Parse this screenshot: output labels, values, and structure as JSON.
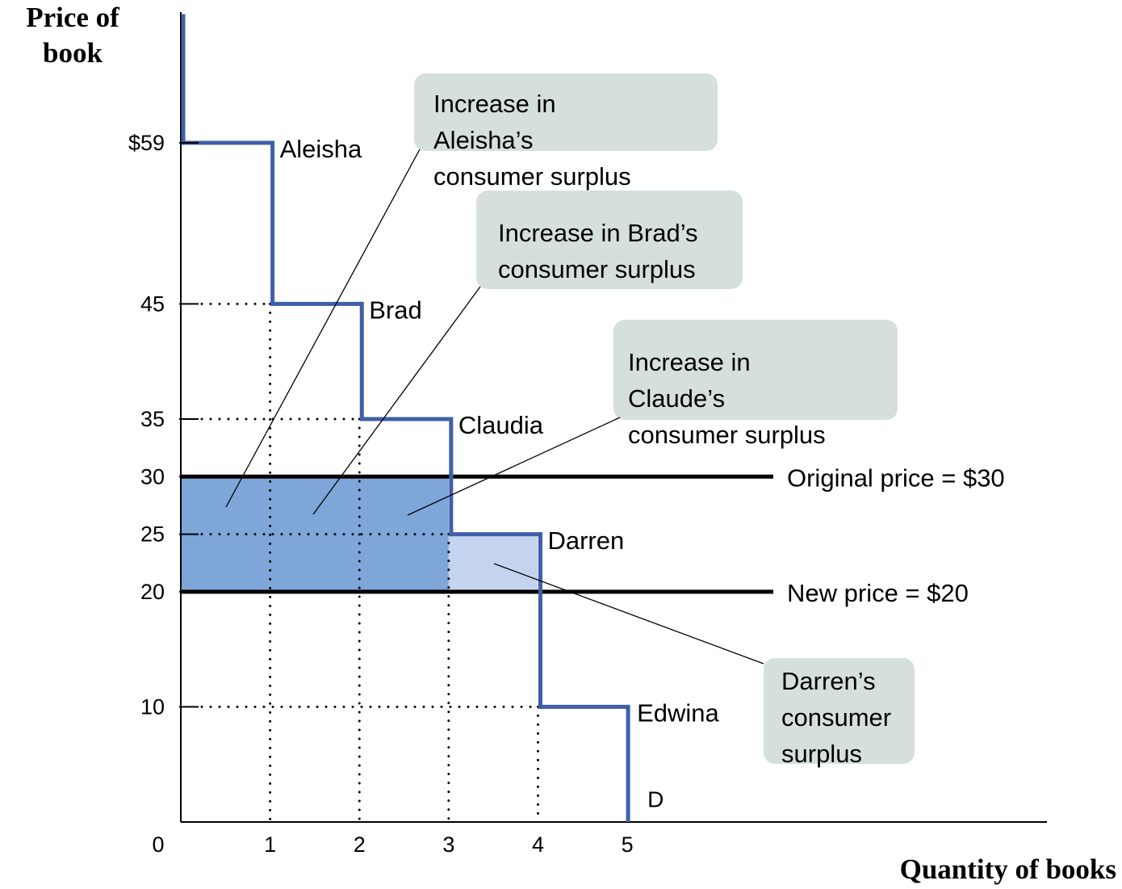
{
  "chart_data": {
    "type": "step-demand",
    "y_label": [
      "Price of",
      "book"
    ],
    "x_label": "Quantity of books",
    "categories": [
      "Aleisha",
      "Brad",
      "Claudia",
      "Darren",
      "Edwina"
    ],
    "values": [
      59,
      45,
      35,
      25,
      10
    ],
    "color": "#3f5fa8",
    "curve_label": "D",
    "price_lines": [
      {
        "label": "Original price = $30",
        "value": 30
      },
      {
        "label": "New price = $20",
        "value": 20
      }
    ],
    "gain_color": "#7ea6d8",
    "new_surplus_color": "#c5d4ee",
    "callout_color": "#d5e0dc",
    "callouts": [
      {
        "lines": [
          "Increase in",
          "Aleisha’s",
          "consumer surplus"
        ]
      },
      {
        "lines": [
          "Increase in Brad’s",
          "consumer surplus"
        ]
      },
      {
        "lines": [
          "Increase in",
          "Claude’s",
          "consumer surplus"
        ]
      },
      {
        "lines": [
          "Darren’s",
          "consumer",
          "surplus"
        ]
      }
    ],
    "xlim": [
      0,
      9.7
    ],
    "ylim": [
      0,
      70
    ],
    "xticks": [
      0,
      1,
      2,
      3,
      4,
      5
    ],
    "yticks": [
      {
        "value": 59,
        "label": "$59"
      },
      45,
      35,
      30,
      25,
      20,
      10
    ]
  }
}
